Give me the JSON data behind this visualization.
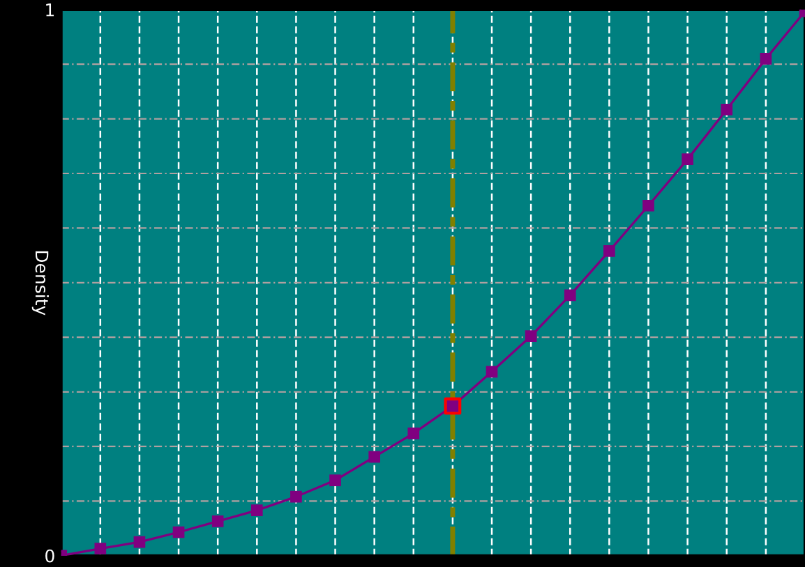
{
  "chart_data": {
    "type": "line",
    "ylabel": "Density",
    "categories": [
      null,
      null,
      null,
      null,
      null,
      null,
      null,
      null,
      null,
      null,
      null,
      null,
      null,
      null,
      null,
      null,
      null,
      null,
      null,
      null
    ],
    "series": [
      {
        "color": "#800080",
        "marker": "square",
        "values": [
          0.0,
          0.013,
          0.025,
          0.043,
          0.063,
          0.083,
          0.108,
          0.138,
          0.181,
          0.224,
          0.274,
          0.337,
          0.402,
          0.477,
          0.558,
          0.641,
          0.726,
          0.817,
          0.91,
          0.997
        ]
      },
      {
        "type": "scatter",
        "color": "#ff0000",
        "marker": "square",
        "values": [
          null,
          null,
          null,
          null,
          null,
          null,
          null,
          null,
          null,
          null,
          0.274,
          null,
          null,
          null,
          null,
          null,
          null,
          null,
          null,
          null
        ]
      }
    ],
    "ylim": [
      0,
      1
    ],
    "yticks": [
      0,
      1
    ],
    "tick_labels": "y",
    "grid": true
  }
}
